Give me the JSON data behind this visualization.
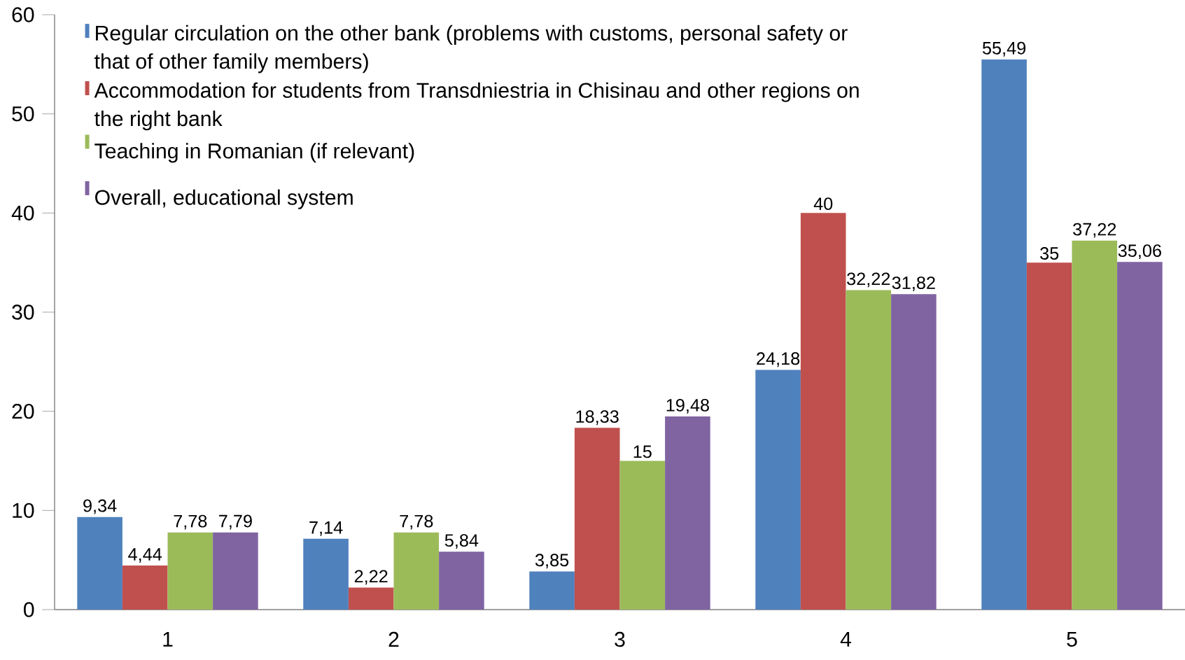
{
  "chart_data": {
    "type": "bar",
    "categories": [
      "1",
      "2",
      "3",
      "4",
      "5"
    ],
    "ylim": [
      0,
      60
    ],
    "yticks": [
      0,
      10,
      20,
      30,
      40,
      50,
      60
    ],
    "legend": "top left",
    "series": [
      {
        "name": "Regular circulation on the other bank (problems with customs, personal safety or that of other family members)",
        "color": "#4f81bd",
        "values": [
          9.34,
          7.14,
          3.85,
          24.18,
          55.49
        ],
        "value_labels": [
          "9,34",
          "7,14",
          "3,85",
          "24,18",
          "55,49"
        ]
      },
      {
        "name": "Accommodation for students from Transdniestria  in Chisinau and other regions on the right bank",
        "color": "#c0504d",
        "values": [
          4.44,
          2.22,
          18.33,
          40,
          35
        ],
        "value_labels": [
          "4,44",
          "2,22",
          "18,33",
          "40",
          "35"
        ]
      },
      {
        "name": "Teaching in Romanian (if relevant)",
        "color": "#9bbb59",
        "values": [
          7.78,
          7.78,
          15,
          32.22,
          37.22
        ],
        "value_labels": [
          "7,78",
          "7,78",
          "15",
          "32,22",
          "37,22"
        ]
      },
      {
        "name": "Overall, educational system",
        "color": "#8064a2",
        "values": [
          7.79,
          5.84,
          19.48,
          31.82,
          35.06
        ],
        "value_labels": [
          "7,79",
          "5,84",
          "19,48",
          "31,82",
          "35,06"
        ]
      }
    ]
  }
}
